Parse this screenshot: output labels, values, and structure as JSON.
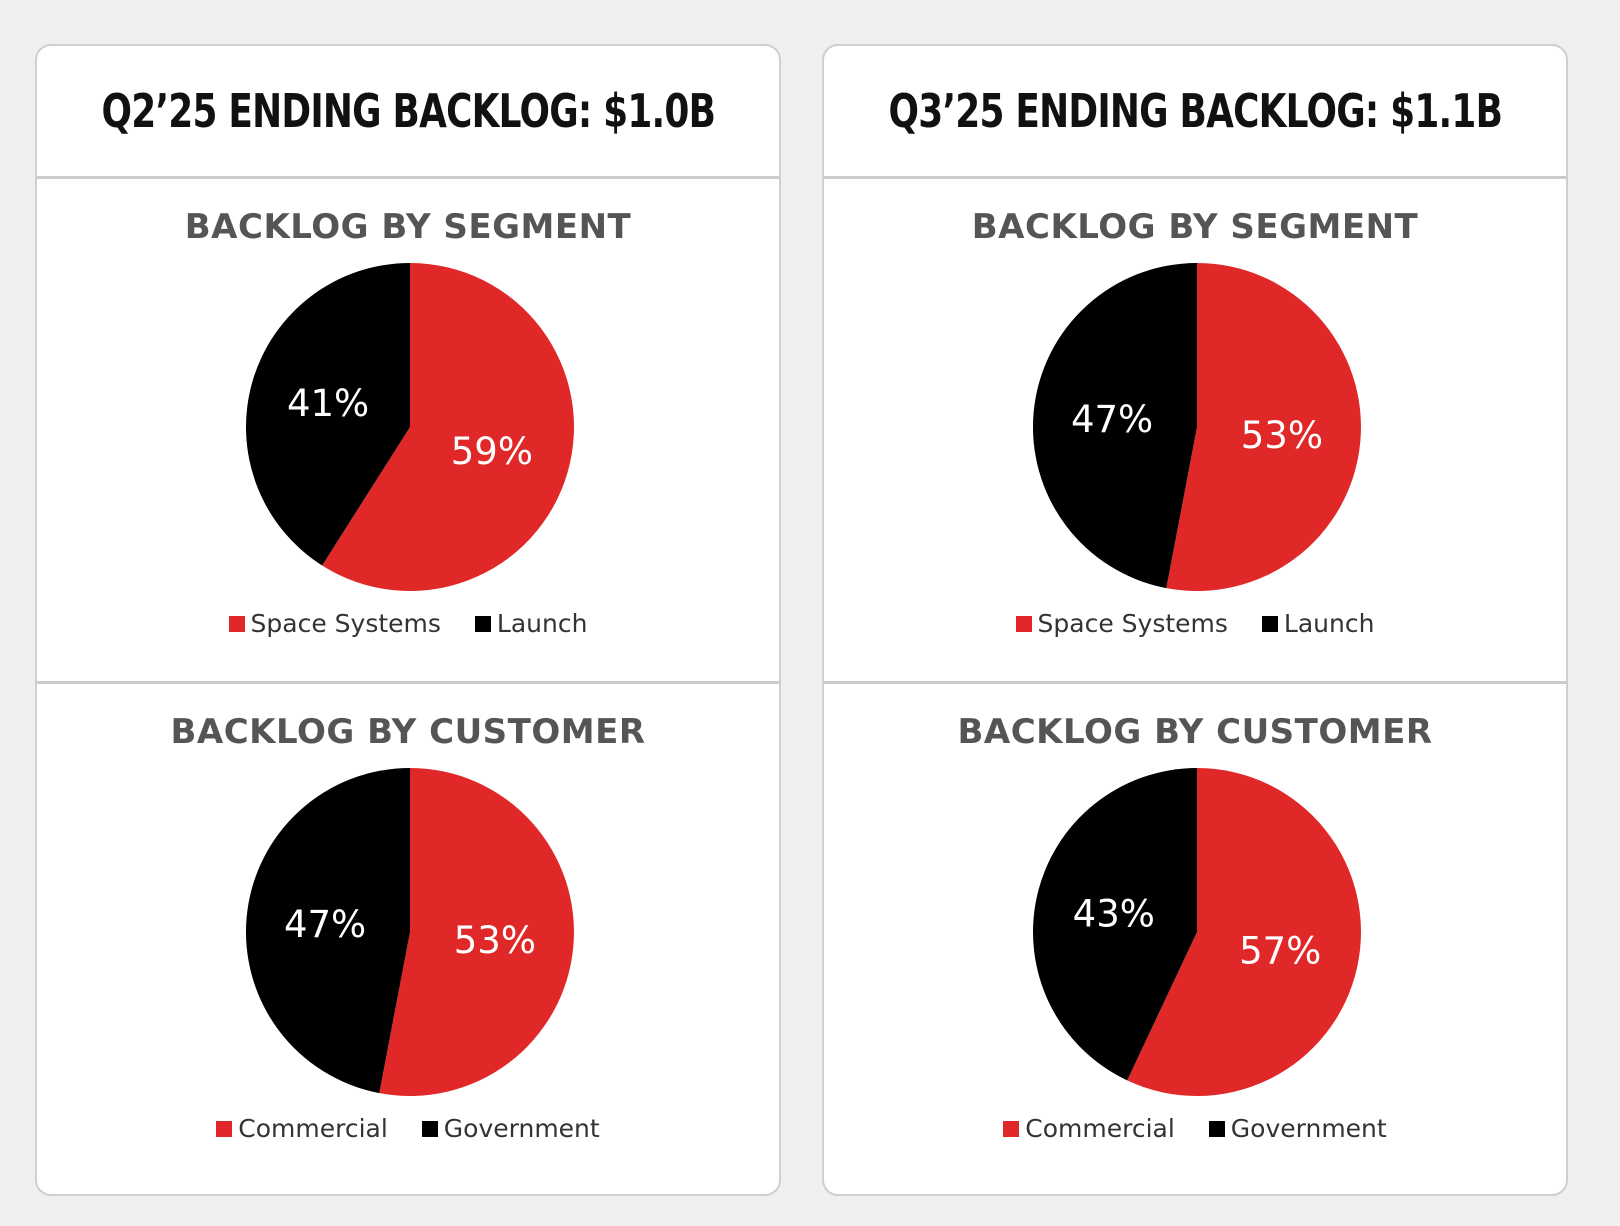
{
  "colors": {
    "red": "#e02828",
    "black": "#000000"
  },
  "cards": [
    {
      "title": "Q2’25 ENDING BACKLOG: $1.0B",
      "segment_title": "BACKLOG BY SEGMENT",
      "customer_title": "BACKLOG BY CUSTOMER"
    },
    {
      "title": "Q3’25 ENDING BACKLOG: $1.1B",
      "segment_title": "BACKLOG BY SEGMENT",
      "customer_title": "BACKLOG BY CUSTOMER"
    }
  ],
  "chart_data": [
    {
      "type": "pie",
      "title": "BACKLOG BY SEGMENT",
      "slices": [
        {
          "label": "Space Systems",
          "value": 59,
          "display": "59%",
          "color": "#e02828"
        },
        {
          "label": "Launch",
          "value": 41,
          "display": "41%",
          "color": "#000000"
        }
      ],
      "legend": [
        "Space Systems",
        "Launch"
      ],
      "legend_position": "bottom"
    },
    {
      "type": "pie",
      "title": "BACKLOG BY CUSTOMER",
      "slices": [
        {
          "label": "Commercial",
          "value": 53,
          "display": "53%",
          "color": "#e02828"
        },
        {
          "label": "Government",
          "value": 47,
          "display": "47%",
          "color": "#000000"
        }
      ],
      "legend": [
        "Commercial",
        "Government"
      ],
      "legend_position": "bottom"
    },
    {
      "type": "pie",
      "title": "BACKLOG BY SEGMENT",
      "slices": [
        {
          "label": "Space Systems",
          "value": 53,
          "display": "53%",
          "color": "#e02828"
        },
        {
          "label": "Launch",
          "value": 47,
          "display": "47%",
          "color": "#000000"
        }
      ],
      "legend": [
        "Space Systems",
        "Launch"
      ],
      "legend_position": "bottom"
    },
    {
      "type": "pie",
      "title": "BACKLOG BY CUSTOMER",
      "slices": [
        {
          "label": "Commercial",
          "value": 57,
          "display": "57%",
          "color": "#e02828"
        },
        {
          "label": "Government",
          "value": 43,
          "display": "43%",
          "color": "#000000"
        }
      ],
      "legend": [
        "Commercial",
        "Government"
      ],
      "legend_position": "bottom"
    }
  ]
}
